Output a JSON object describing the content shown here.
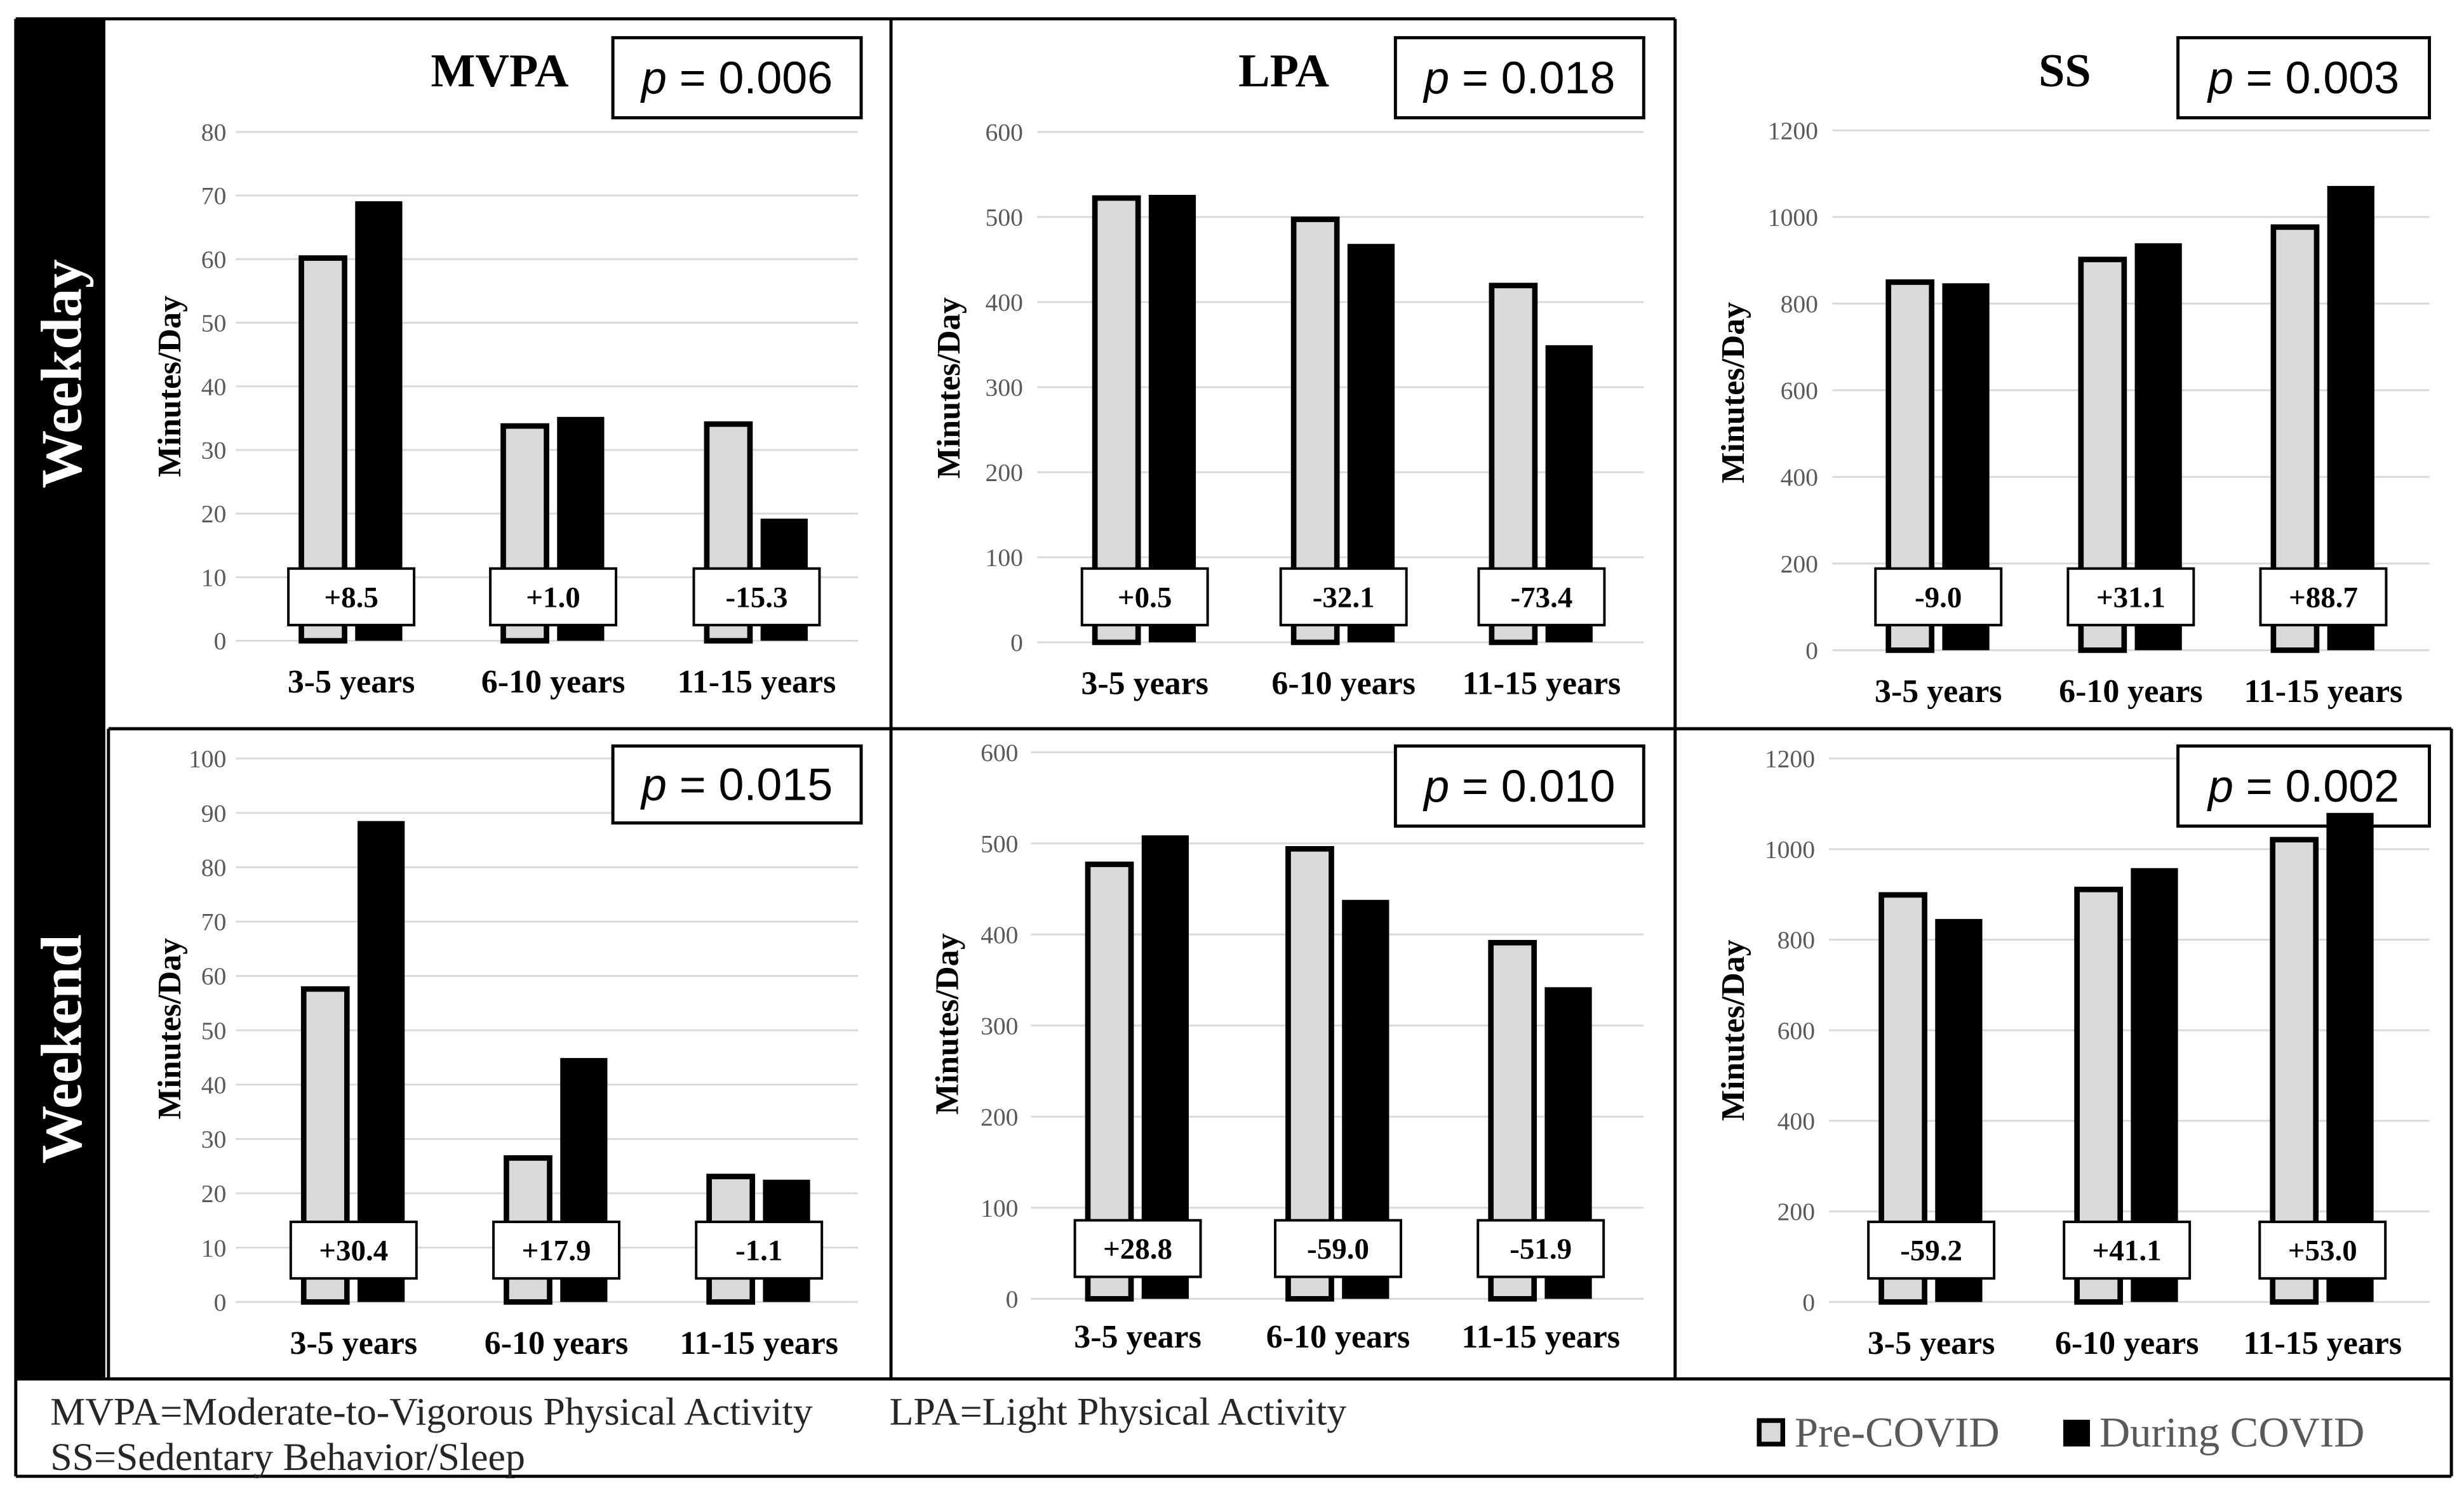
{
  "row_labels": [
    "Weekday",
    "Weekend"
  ],
  "footer": {
    "definitions": [
      "MVPA=Moderate-to-Vigorous Physical Activity",
      "LPA=Light Physical Activity",
      "SS=Sedentary Behavior/Sleep"
    ],
    "legend": [
      {
        "label": "Pre-COVID",
        "color": "#d9d9d9"
      },
      {
        "label": "During COVID",
        "color": "#000000"
      }
    ]
  },
  "chart_data": [
    {
      "type": "bar",
      "title": "MVPA",
      "p_value": {
        "symbol": "p",
        "value": "= 0.006"
      },
      "ylabel": "Minutes/Day",
      "ylim": [
        0,
        80
      ],
      "yticks": [
        0,
        10,
        20,
        30,
        40,
        50,
        60,
        70,
        80
      ],
      "grid": true,
      "categories": [
        "3-5 years",
        "6-10 years",
        "11-15 years"
      ],
      "series": [
        {
          "name": "Pre-COVID",
          "color": "#d9d9d9",
          "values": [
            60.6,
            34.2,
            34.5
          ]
        },
        {
          "name": "During COVID",
          "color": "#000000",
          "values": [
            69.1,
            35.2,
            19.2
          ]
        }
      ],
      "differences": [
        "+8.5",
        "+1.0",
        "-15.3"
      ]
    },
    {
      "type": "bar",
      "title": "LPA",
      "p_value": {
        "symbol": "p",
        "value": "= 0.018"
      },
      "ylabel": "Minutes/Day",
      "ylim": [
        0,
        600
      ],
      "yticks": [
        0,
        100,
        200,
        300,
        400,
        500,
        600
      ],
      "grid": true,
      "categories": [
        "3-5 years",
        "6-10 years",
        "11-15 years"
      ],
      "series": [
        {
          "name": "Pre-COVID",
          "color": "#d9d9d9",
          "values": [
            525.5,
            500.5,
            422.7
          ]
        },
        {
          "name": "During COVID",
          "color": "#000000",
          "values": [
            526.0,
            468.4,
            349.3
          ]
        }
      ],
      "differences": [
        "+0.5",
        "-32.1",
        "-73.4"
      ]
    },
    {
      "type": "bar",
      "title": "SS",
      "p_value": {
        "symbol": "p",
        "value": "= 0.003"
      },
      "ylabel": "Minutes/Day",
      "ylim": [
        0,
        1200
      ],
      "yticks": [
        0,
        200,
        400,
        600,
        800,
        1000,
        1200
      ],
      "grid": true,
      "categories": [
        "3-5 years",
        "6-10 years",
        "11-15 years"
      ],
      "series": [
        {
          "name": "Pre-COVID",
          "color": "#d9d9d9",
          "values": [
            856.0,
            908.3,
            983.0
          ]
        },
        {
          "name": "During COVID",
          "color": "#000000",
          "values": [
            847.0,
            939.4,
            1071.7
          ]
        }
      ],
      "differences": [
        "-9.0",
        "+31.1",
        "+88.7"
      ]
    },
    {
      "type": "bar",
      "p_value": {
        "symbol": "p",
        "value": "= 0.015"
      },
      "ylabel": "Minutes/Day",
      "ylim": [
        0,
        100
      ],
      "yticks": [
        0,
        10,
        20,
        30,
        40,
        50,
        60,
        70,
        80,
        90,
        100
      ],
      "grid": true,
      "categories": [
        "3-5 years",
        "6-10 years",
        "11-15 years"
      ],
      "series": [
        {
          "name": "Pre-COVID",
          "color": "#d9d9d9",
          "values": [
            58.1,
            27.0,
            23.6
          ]
        },
        {
          "name": "During COVID",
          "color": "#000000",
          "values": [
            88.5,
            44.9,
            22.5
          ]
        }
      ],
      "differences": [
        "+30.4",
        "+17.9",
        "-1.1"
      ]
    },
    {
      "type": "bar",
      "p_value": {
        "symbol": "p",
        "value": "= 0.010"
      },
      "ylabel": "Minutes/Day",
      "ylim": [
        0,
        600
      ],
      "yticks": [
        0,
        100,
        200,
        300,
        400,
        500,
        600
      ],
      "grid": true,
      "categories": [
        "3-5 years",
        "6-10 years",
        "11-15 years"
      ],
      "series": [
        {
          "name": "Pre-COVID",
          "color": "#d9d9d9",
          "values": [
            480.0,
            497.0,
            394.0
          ]
        },
        {
          "name": "During COVID",
          "color": "#000000",
          "values": [
            508.8,
            438.0,
            342.1
          ]
        }
      ],
      "differences": [
        "+28.8",
        "-59.0",
        "-51.9"
      ]
    },
    {
      "type": "bar",
      "p_value": {
        "symbol": "p",
        "value": "= 0.002"
      },
      "ylabel": "Minutes/Day",
      "ylim": [
        0,
        1200
      ],
      "yticks": [
        0,
        200,
        400,
        600,
        800,
        1000,
        1200
      ],
      "grid": true,
      "categories": [
        "3-5 years",
        "6-10 years",
        "11-15 years"
      ],
      "series": [
        {
          "name": "Pre-COVID",
          "color": "#d9d9d9",
          "values": [
            905.0,
            917.0,
            1027.0
          ]
        },
        {
          "name": "During COVID",
          "color": "#000000",
          "values": [
            845.8,
            958.1,
            1080.0
          ]
        }
      ],
      "differences": [
        "-59.2",
        "+41.1",
        "+53.0"
      ]
    }
  ]
}
